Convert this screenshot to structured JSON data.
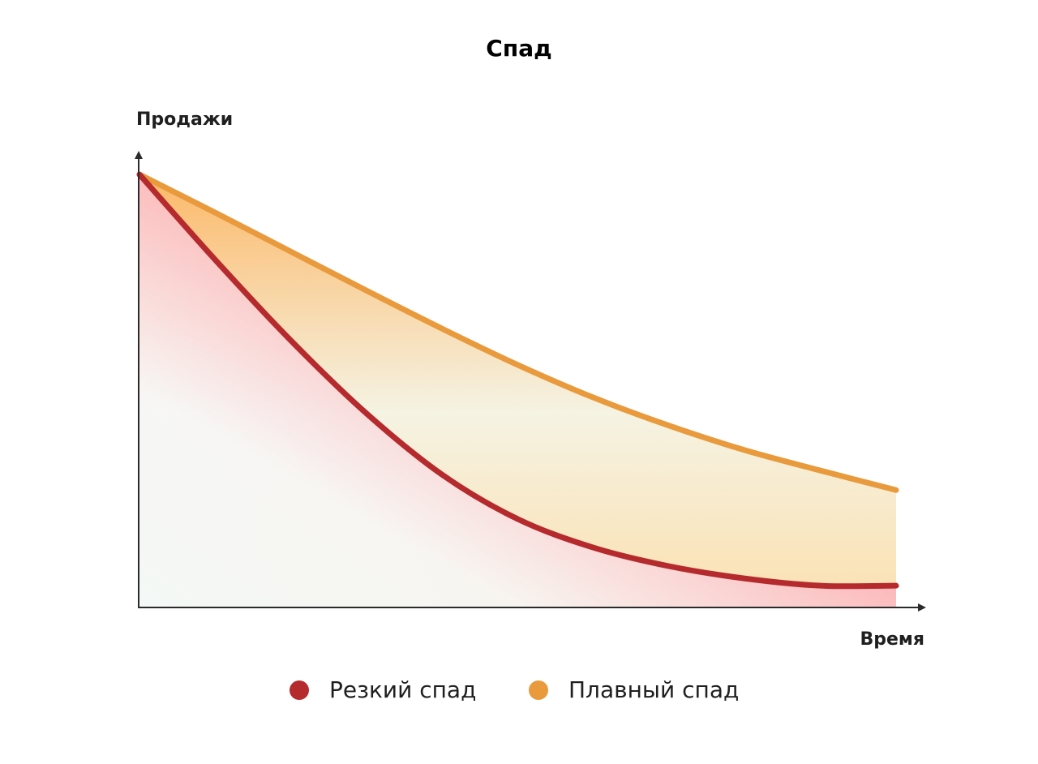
{
  "chart_data": {
    "type": "area",
    "title": "Спад",
    "y_label": "Продажи",
    "x_label": "Время",
    "x": [
      0,
      1,
      2,
      3,
      4,
      5,
      6,
      7,
      8,
      9,
      10
    ],
    "xlim": [
      0,
      10
    ],
    "ylim": [
      0,
      100
    ],
    "series": [
      {
        "name": "Резкий спад",
        "color": "#b52a2d",
        "values": [
          95.5,
          76.7,
          58.9,
          42.8,
          29.3,
          19.5,
          13.2,
          9.1,
          6.4,
          4.8,
          4.8
        ]
      },
      {
        "name": "Плавный спад",
        "color": "#e89a3c",
        "values": [
          95.5,
          87.1,
          78.5,
          69.9,
          61.5,
          53.5,
          46.3,
          40.1,
          34.7,
          30.2,
          25.9
        ]
      }
    ]
  }
}
